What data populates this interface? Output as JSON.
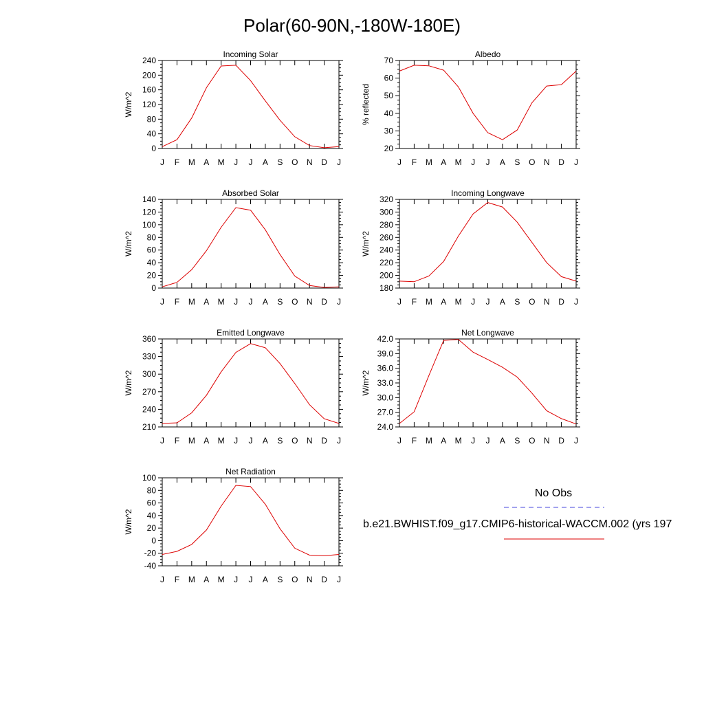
{
  "page": {
    "title": "Polar(60-90N,-180W-180E)"
  },
  "legend": {
    "obs_label": "No Obs",
    "obs_color": "#4444dd",
    "model_label": "b.e21.BWHIST.f09_g17.CMIP6-historical-WACCM.002 (yrs 197",
    "model_color": "#dd0000"
  },
  "chart_data": [
    {
      "type": "line",
      "title": "Incoming Solar",
      "ylabel": "W/m^2",
      "xlabel": "",
      "categories": [
        "J",
        "F",
        "M",
        "A",
        "M",
        "J",
        "J",
        "A",
        "S",
        "O",
        "N",
        "D",
        "J"
      ],
      "ylim": [
        0,
        240
      ],
      "yticks": [
        0,
        40,
        80,
        120,
        160,
        200,
        240
      ],
      "ytick_labels": [
        "0",
        "40",
        "80",
        "120",
        "160",
        "200",
        "240"
      ],
      "series": [
        {
          "name": "model",
          "color": "#dd0000",
          "values": [
            5,
            24,
            83,
            166,
            225,
            227,
            185,
            130,
            77,
            32,
            8,
            2,
            5
          ]
        }
      ]
    },
    {
      "type": "line",
      "title": "Albedo",
      "ylabel": "% reflected",
      "xlabel": "",
      "categories": [
        "J",
        "F",
        "M",
        "A",
        "M",
        "J",
        "J",
        "A",
        "S",
        "O",
        "N",
        "D",
        "J"
      ],
      "ylim": [
        20,
        70
      ],
      "yticks": [
        20,
        30,
        40,
        50,
        60,
        70
      ],
      "ytick_labels": [
        "20",
        "30",
        "40",
        "50",
        "60",
        "70"
      ],
      "series": [
        {
          "name": "model",
          "color": "#dd0000",
          "values": [
            64,
            67.3,
            67,
            64.5,
            55,
            40,
            29,
            25,
            30.5,
            46,
            55.5,
            56.3,
            64
          ]
        }
      ]
    },
    {
      "type": "line",
      "title": "Absorbed Solar",
      "ylabel": "W/m^2",
      "xlabel": "",
      "categories": [
        "J",
        "F",
        "M",
        "A",
        "M",
        "J",
        "J",
        "A",
        "S",
        "O",
        "N",
        "D",
        "J"
      ],
      "ylim": [
        0,
        140
      ],
      "yticks": [
        0,
        20,
        40,
        60,
        80,
        100,
        120,
        140
      ],
      "ytick_labels": [
        "0",
        "20",
        "40",
        "60",
        "80",
        "100",
        "120",
        "140"
      ],
      "series": [
        {
          "name": "model",
          "color": "#dd0000",
          "values": [
            2,
            9,
            29,
            59,
            96,
            127,
            123,
            92,
            53,
            19,
            4,
            1,
            2
          ]
        }
      ]
    },
    {
      "type": "line",
      "title": "Incoming Longwave",
      "ylabel": "W/m^2",
      "xlabel": "",
      "categories": [
        "J",
        "F",
        "M",
        "A",
        "M",
        "J",
        "J",
        "A",
        "S",
        "O",
        "N",
        "D",
        "J"
      ],
      "ylim": [
        180,
        320
      ],
      "yticks": [
        180,
        200,
        220,
        240,
        260,
        280,
        300,
        320
      ],
      "ytick_labels": [
        "180",
        "200",
        "220",
        "240",
        "260",
        "280",
        "300",
        "320"
      ],
      "series": [
        {
          "name": "model",
          "color": "#dd0000",
          "values": [
            191,
            190,
            199,
            222,
            262,
            297,
            315,
            308,
            284,
            252,
            220,
            198,
            191
          ]
        }
      ]
    },
    {
      "type": "line",
      "title": "Emitted Longwave",
      "ylabel": "W/m^2",
      "xlabel": "",
      "categories": [
        "J",
        "F",
        "M",
        "A",
        "M",
        "J",
        "J",
        "A",
        "S",
        "O",
        "N",
        "D",
        "J"
      ],
      "ylim": [
        210,
        360
      ],
      "yticks": [
        210,
        240,
        270,
        300,
        330,
        360
      ],
      "ytick_labels": [
        "210",
        "240",
        "270",
        "300",
        "330",
        "360"
      ],
      "series": [
        {
          "name": "model",
          "color": "#dd0000",
          "values": [
            216,
            217,
            234,
            264,
            304,
            337,
            352,
            345,
            318,
            284,
            248,
            224,
            216
          ]
        }
      ]
    },
    {
      "type": "line",
      "title": "Net Longwave",
      "ylabel": "W/m^2",
      "xlabel": "",
      "categories": [
        "J",
        "F",
        "M",
        "A",
        "M",
        "J",
        "J",
        "A",
        "S",
        "O",
        "N",
        "D",
        "J"
      ],
      "ylim": [
        24,
        42
      ],
      "yticks": [
        24,
        27,
        30,
        33,
        36,
        39,
        42
      ],
      "ytick_labels": [
        "24.0",
        "27.0",
        "30.0",
        "33.0",
        "36.0",
        "39.0",
        "42.0"
      ],
      "series": [
        {
          "name": "model",
          "color": "#dd0000",
          "values": [
            24.7,
            27.1,
            34.5,
            41.7,
            41.9,
            39.3,
            37.8,
            36.2,
            34.2,
            30.9,
            27.3,
            25.7,
            24.6
          ]
        }
      ]
    },
    {
      "type": "line",
      "title": "Net Radiation",
      "ylabel": "W/m^2",
      "xlabel": "",
      "categories": [
        "J",
        "F",
        "M",
        "A",
        "M",
        "J",
        "J",
        "A",
        "S",
        "O",
        "N",
        "D",
        "J"
      ],
      "ylim": [
        -40,
        100
      ],
      "yticks": [
        -40,
        -20,
        0,
        20,
        40,
        60,
        80,
        100
      ],
      "ytick_labels": [
        "-40",
        "-20",
        "0",
        "20",
        "40",
        "60",
        "80",
        "100"
      ],
      "series": [
        {
          "name": "model",
          "color": "#dd0000",
          "values": [
            -22,
            -17,
            -6,
            17,
            55,
            88,
            86,
            58,
            19,
            -12,
            -23,
            -24,
            -22
          ]
        }
      ]
    }
  ]
}
